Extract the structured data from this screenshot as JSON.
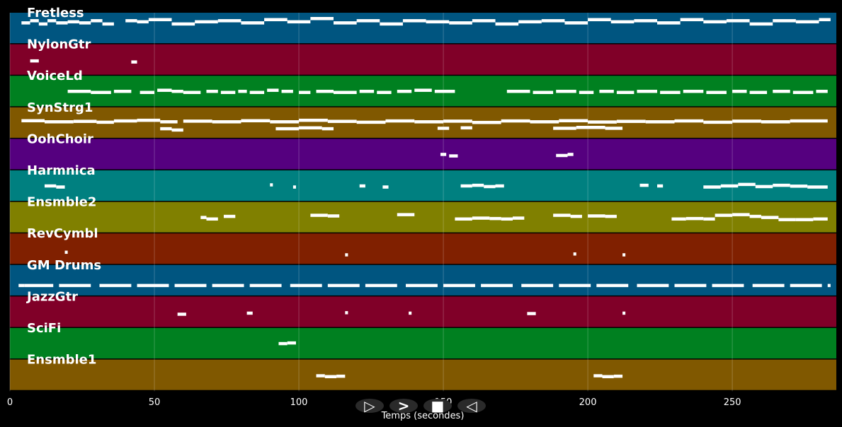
{
  "chart_data": {
    "type": "piano-roll",
    "xlabel": "Temps (secondes)",
    "xlim": [
      0,
      286
    ],
    "xticks": [
      0,
      50,
      100,
      150,
      200,
      250
    ],
    "grid": true,
    "tracks": [
      {
        "name": "Fretless",
        "color": "#005580",
        "notes": [
          [
            4,
            7,
            0.2
          ],
          [
            7,
            10,
            0.1
          ],
          [
            10,
            13,
            0.25
          ],
          [
            13,
            16,
            0.1
          ],
          [
            16,
            20,
            0.2
          ],
          [
            20,
            24,
            0.15
          ],
          [
            24,
            28,
            0.2
          ],
          [
            28,
            32,
            0.1
          ],
          [
            32,
            36,
            0.25
          ],
          [
            40,
            44,
            0.1
          ],
          [
            44,
            48,
            0.15
          ],
          [
            48,
            56,
            0.05
          ],
          [
            56,
            64,
            0.25
          ],
          [
            64,
            72,
            0.15
          ],
          [
            72,
            80,
            0.1
          ],
          [
            80,
            88,
            0.2
          ],
          [
            88,
            96,
            0.05
          ],
          [
            96,
            104,
            0.15
          ],
          [
            104,
            112,
            0.0
          ],
          [
            112,
            120,
            0.2
          ],
          [
            120,
            128,
            0.1
          ],
          [
            128,
            136,
            0.25
          ],
          [
            136,
            144,
            0.1
          ],
          [
            144,
            152,
            0.15
          ],
          [
            152,
            160,
            0.2
          ],
          [
            160,
            168,
            0.1
          ],
          [
            168,
            176,
            0.25
          ],
          [
            176,
            184,
            0.15
          ],
          [
            184,
            192,
            0.1
          ],
          [
            192,
            200,
            0.2
          ],
          [
            200,
            208,
            0.05
          ],
          [
            208,
            216,
            0.15
          ],
          [
            216,
            224,
            0.1
          ],
          [
            224,
            232,
            0.2
          ],
          [
            232,
            240,
            0.05
          ],
          [
            240,
            248,
            0.15
          ],
          [
            248,
            256,
            0.1
          ],
          [
            256,
            264,
            0.25
          ],
          [
            264,
            272,
            0.1
          ],
          [
            272,
            280,
            0.15
          ],
          [
            280,
            284,
            0.05
          ]
        ]
      },
      {
        "name": "NylonGtr",
        "color": "#800028",
        "notes": [
          [
            7,
            10,
            0.5
          ],
          [
            42,
            44,
            0.55
          ]
        ]
      },
      {
        "name": "VoiceLd",
        "color": "#008020",
        "notes": [
          [
            20,
            28,
            0.45
          ],
          [
            28,
            35,
            0.5
          ],
          [
            36,
            42,
            0.45
          ],
          [
            45,
            50,
            0.5
          ],
          [
            51,
            56,
            0.4
          ],
          [
            56,
            60,
            0.45
          ],
          [
            60,
            66,
            0.5
          ],
          [
            68,
            72,
            0.45
          ],
          [
            73,
            78,
            0.5
          ],
          [
            79,
            82,
            0.45
          ],
          [
            83,
            88,
            0.5
          ],
          [
            89,
            93,
            0.4
          ],
          [
            94,
            98,
            0.45
          ],
          [
            100,
            104,
            0.5
          ],
          [
            106,
            112,
            0.45
          ],
          [
            112,
            120,
            0.5
          ],
          [
            121,
            126,
            0.45
          ],
          [
            127,
            132,
            0.5
          ],
          [
            134,
            139,
            0.45
          ],
          [
            140,
            146,
            0.4
          ],
          [
            147,
            154,
            0.45
          ],
          [
            172,
            180,
            0.45
          ],
          [
            181,
            188,
            0.5
          ],
          [
            189,
            196,
            0.45
          ],
          [
            197,
            202,
            0.5
          ],
          [
            204,
            209,
            0.45
          ],
          [
            210,
            216,
            0.5
          ],
          [
            217,
            224,
            0.45
          ],
          [
            225,
            232,
            0.5
          ],
          [
            233,
            240,
            0.45
          ],
          [
            241,
            248,
            0.5
          ],
          [
            250,
            255,
            0.45
          ],
          [
            256,
            262,
            0.5
          ],
          [
            264,
            270,
            0.45
          ],
          [
            271,
            278,
            0.5
          ],
          [
            279,
            283,
            0.45
          ]
        ]
      },
      {
        "name": "SynStrg1",
        "color": "#805800",
        "notes": [
          [
            4,
            12,
            0.35
          ],
          [
            12,
            22,
            0.4
          ],
          [
            22,
            30,
            0.38
          ],
          [
            30,
            36,
            0.42
          ],
          [
            36,
            44,
            0.36
          ],
          [
            44,
            52,
            0.33
          ],
          [
            52,
            58,
            0.4
          ],
          [
            60,
            70,
            0.37
          ],
          [
            70,
            80,
            0.4
          ],
          [
            80,
            90,
            0.35
          ],
          [
            90,
            100,
            0.4
          ],
          [
            100,
            110,
            0.33
          ],
          [
            110,
            120,
            0.38
          ],
          [
            120,
            130,
            0.42
          ],
          [
            130,
            140,
            0.36
          ],
          [
            140,
            150,
            0.4
          ],
          [
            150,
            160,
            0.37
          ],
          [
            160,
            170,
            0.43
          ],
          [
            170,
            180,
            0.36
          ],
          [
            180,
            190,
            0.4
          ],
          [
            190,
            200,
            0.35
          ],
          [
            200,
            210,
            0.41
          ],
          [
            210,
            220,
            0.38
          ],
          [
            220,
            230,
            0.4
          ],
          [
            230,
            240,
            0.36
          ],
          [
            240,
            250,
            0.42
          ],
          [
            250,
            260,
            0.37
          ],
          [
            260,
            270,
            0.4
          ],
          [
            270,
            283,
            0.36
          ],
          [
            52,
            56,
            0.72
          ],
          [
            56,
            60,
            0.78
          ],
          [
            92,
            100,
            0.72
          ],
          [
            100,
            108,
            0.68
          ],
          [
            108,
            112,
            0.72
          ],
          [
            148,
            152,
            0.7
          ],
          [
            156,
            160,
            0.68
          ],
          [
            188,
            196,
            0.7
          ],
          [
            196,
            206,
            0.66
          ],
          [
            206,
            212,
            0.7
          ]
        ]
      },
      {
        "name": "OohChoir",
        "color": "#55007f",
        "notes": [
          [
            149,
            151,
            0.45
          ],
          [
            152,
            155,
            0.52
          ],
          [
            189,
            193,
            0.5
          ],
          [
            193,
            195,
            0.45
          ]
        ]
      },
      {
        "name": "Harmnica",
        "color": "#008080",
        "notes": [
          [
            12,
            16,
            0.45
          ],
          [
            16,
            19,
            0.5
          ],
          [
            90,
            91,
            0.4
          ],
          [
            98,
            99,
            0.5
          ],
          [
            121,
            123,
            0.45
          ],
          [
            129,
            131,
            0.5
          ],
          [
            156,
            160,
            0.45
          ],
          [
            160,
            164,
            0.42
          ],
          [
            164,
            168,
            0.48
          ],
          [
            168,
            171,
            0.45
          ],
          [
            218,
            221,
            0.42
          ],
          [
            224,
            226,
            0.45
          ],
          [
            240,
            246,
            0.5
          ],
          [
            246,
            252,
            0.45
          ],
          [
            252,
            258,
            0.38
          ],
          [
            258,
            264,
            0.48
          ],
          [
            264,
            270,
            0.42
          ],
          [
            270,
            276,
            0.46
          ],
          [
            276,
            283,
            0.5
          ]
        ]
      },
      {
        "name": "Ensmble2",
        "color": "#808000",
        "notes": [
          [
            66,
            68,
            0.45
          ],
          [
            68,
            72,
            0.52
          ],
          [
            74,
            78,
            0.4
          ],
          [
            104,
            110,
            0.35
          ],
          [
            110,
            114,
            0.38
          ],
          [
            134,
            140,
            0.32
          ],
          [
            154,
            160,
            0.52
          ],
          [
            160,
            166,
            0.48
          ],
          [
            166,
            170,
            0.5
          ],
          [
            170,
            174,
            0.52
          ],
          [
            174,
            178,
            0.48
          ],
          [
            188,
            194,
            0.35
          ],
          [
            194,
            198,
            0.4
          ],
          [
            200,
            206,
            0.38
          ],
          [
            206,
            210,
            0.4
          ],
          [
            229,
            234,
            0.52
          ],
          [
            234,
            240,
            0.5
          ],
          [
            240,
            244,
            0.52
          ],
          [
            244,
            250,
            0.35
          ],
          [
            250,
            256,
            0.32
          ],
          [
            256,
            260,
            0.4
          ],
          [
            260,
            266,
            0.45
          ],
          [
            266,
            272,
            0.55
          ],
          [
            272,
            278,
            0.55
          ],
          [
            278,
            283,
            0.52
          ]
        ]
      },
      {
        "name": "RevCymbl",
        "color": "#802000",
        "notes": [
          [
            19,
            20,
            0.6
          ],
          [
            116,
            117,
            0.72
          ],
          [
            195,
            196,
            0.68
          ],
          [
            212,
            213,
            0.72
          ]
        ]
      },
      {
        "name": "GM Drums",
        "color": "#005580",
        "notes": [
          [
            3,
            5,
            0.68
          ],
          [
            5,
            15,
            0.68
          ],
          [
            17,
            28,
            0.68
          ],
          [
            31,
            42,
            0.68
          ],
          [
            44,
            55,
            0.68
          ],
          [
            57,
            68,
            0.68
          ],
          [
            70,
            81,
            0.68
          ],
          [
            83,
            94,
            0.68
          ],
          [
            97,
            108,
            0.68
          ],
          [
            110,
            121,
            0.68
          ],
          [
            123,
            134,
            0.68
          ],
          [
            137,
            148,
            0.68
          ],
          [
            150,
            161,
            0.68
          ],
          [
            163,
            174,
            0.68
          ],
          [
            177,
            188,
            0.68
          ],
          [
            190,
            201,
            0.68
          ],
          [
            203,
            214,
            0.68
          ],
          [
            217,
            228,
            0.68
          ],
          [
            230,
            241,
            0.68
          ],
          [
            243,
            254,
            0.68
          ],
          [
            257,
            268,
            0.68
          ],
          [
            270,
            281,
            0.68
          ],
          [
            283,
            284,
            0.68
          ]
        ]
      },
      {
        "name": "JazzGtr",
        "color": "#800028",
        "notes": [
          [
            58,
            61,
            0.55
          ],
          [
            82,
            84,
            0.5
          ],
          [
            116,
            117,
            0.48
          ],
          [
            138,
            139,
            0.5
          ],
          [
            179,
            182,
            0.52
          ],
          [
            212,
            213,
            0.5
          ]
        ]
      },
      {
        "name": "SciFi",
        "color": "#008020",
        "notes": [
          [
            93,
            96,
            0.45
          ],
          [
            96,
            99,
            0.42
          ]
        ]
      },
      {
        "name": "Ensmble1",
        "color": "#805800",
        "notes": [
          [
            106,
            109,
            0.48
          ],
          [
            109,
            113,
            0.52
          ],
          [
            113,
            116,
            0.5
          ],
          [
            202,
            205,
            0.48
          ],
          [
            205,
            209,
            0.52
          ],
          [
            209,
            212,
            0.5
          ]
        ]
      }
    ]
  },
  "controls": [
    {
      "name": "play-next-button",
      "glyph": "▷"
    },
    {
      "name": "next-button",
      "glyph": ">"
    },
    {
      "name": "stop-button",
      "glyph": "■"
    },
    {
      "name": "previous-button",
      "glyph": "◁"
    }
  ]
}
